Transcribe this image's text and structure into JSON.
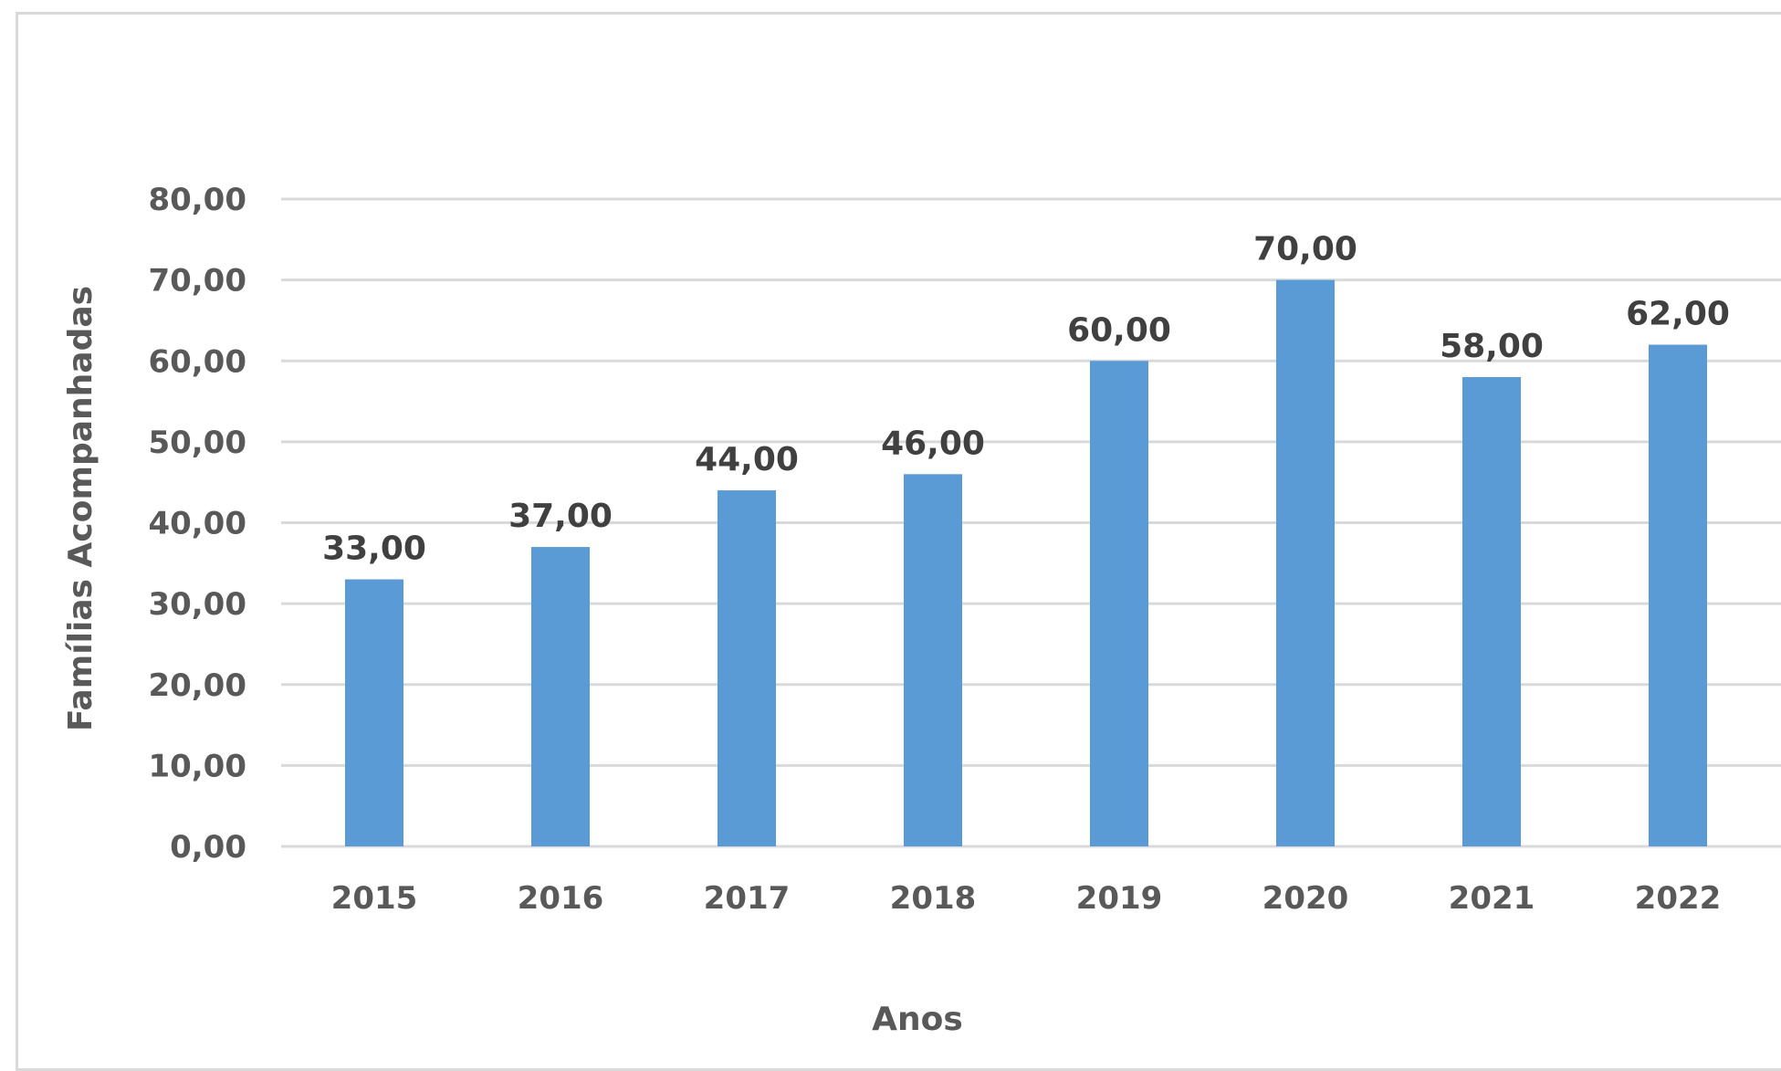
{
  "chart_data": {
    "type": "bar",
    "title": "",
    "xlabel": "Anos",
    "ylabel": "Famílias Acompanhadas",
    "categories": [
      "2015",
      "2016",
      "2017",
      "2018",
      "2019",
      "2020",
      "2021",
      "2022"
    ],
    "values": [
      33,
      37,
      44,
      46,
      60,
      70,
      58,
      62
    ],
    "value_labels": [
      "33,00",
      "37,00",
      "44,00",
      "46,00",
      "60,00",
      "70,00",
      "58,00",
      "62,00"
    ],
    "ylim": [
      0,
      80
    ],
    "y_ticks": [
      0,
      10,
      20,
      30,
      40,
      50,
      60,
      70,
      80
    ],
    "y_tick_labels": [
      "0,00",
      "10,00",
      "20,00",
      "30,00",
      "40,00",
      "50,00",
      "60,00",
      "70,00",
      "80,00"
    ],
    "grid": true,
    "legend": "none",
    "colors": {
      "bar": "#5b9bd5",
      "grid": "#d9d9d9",
      "frame": "#d9d9d9"
    }
  }
}
